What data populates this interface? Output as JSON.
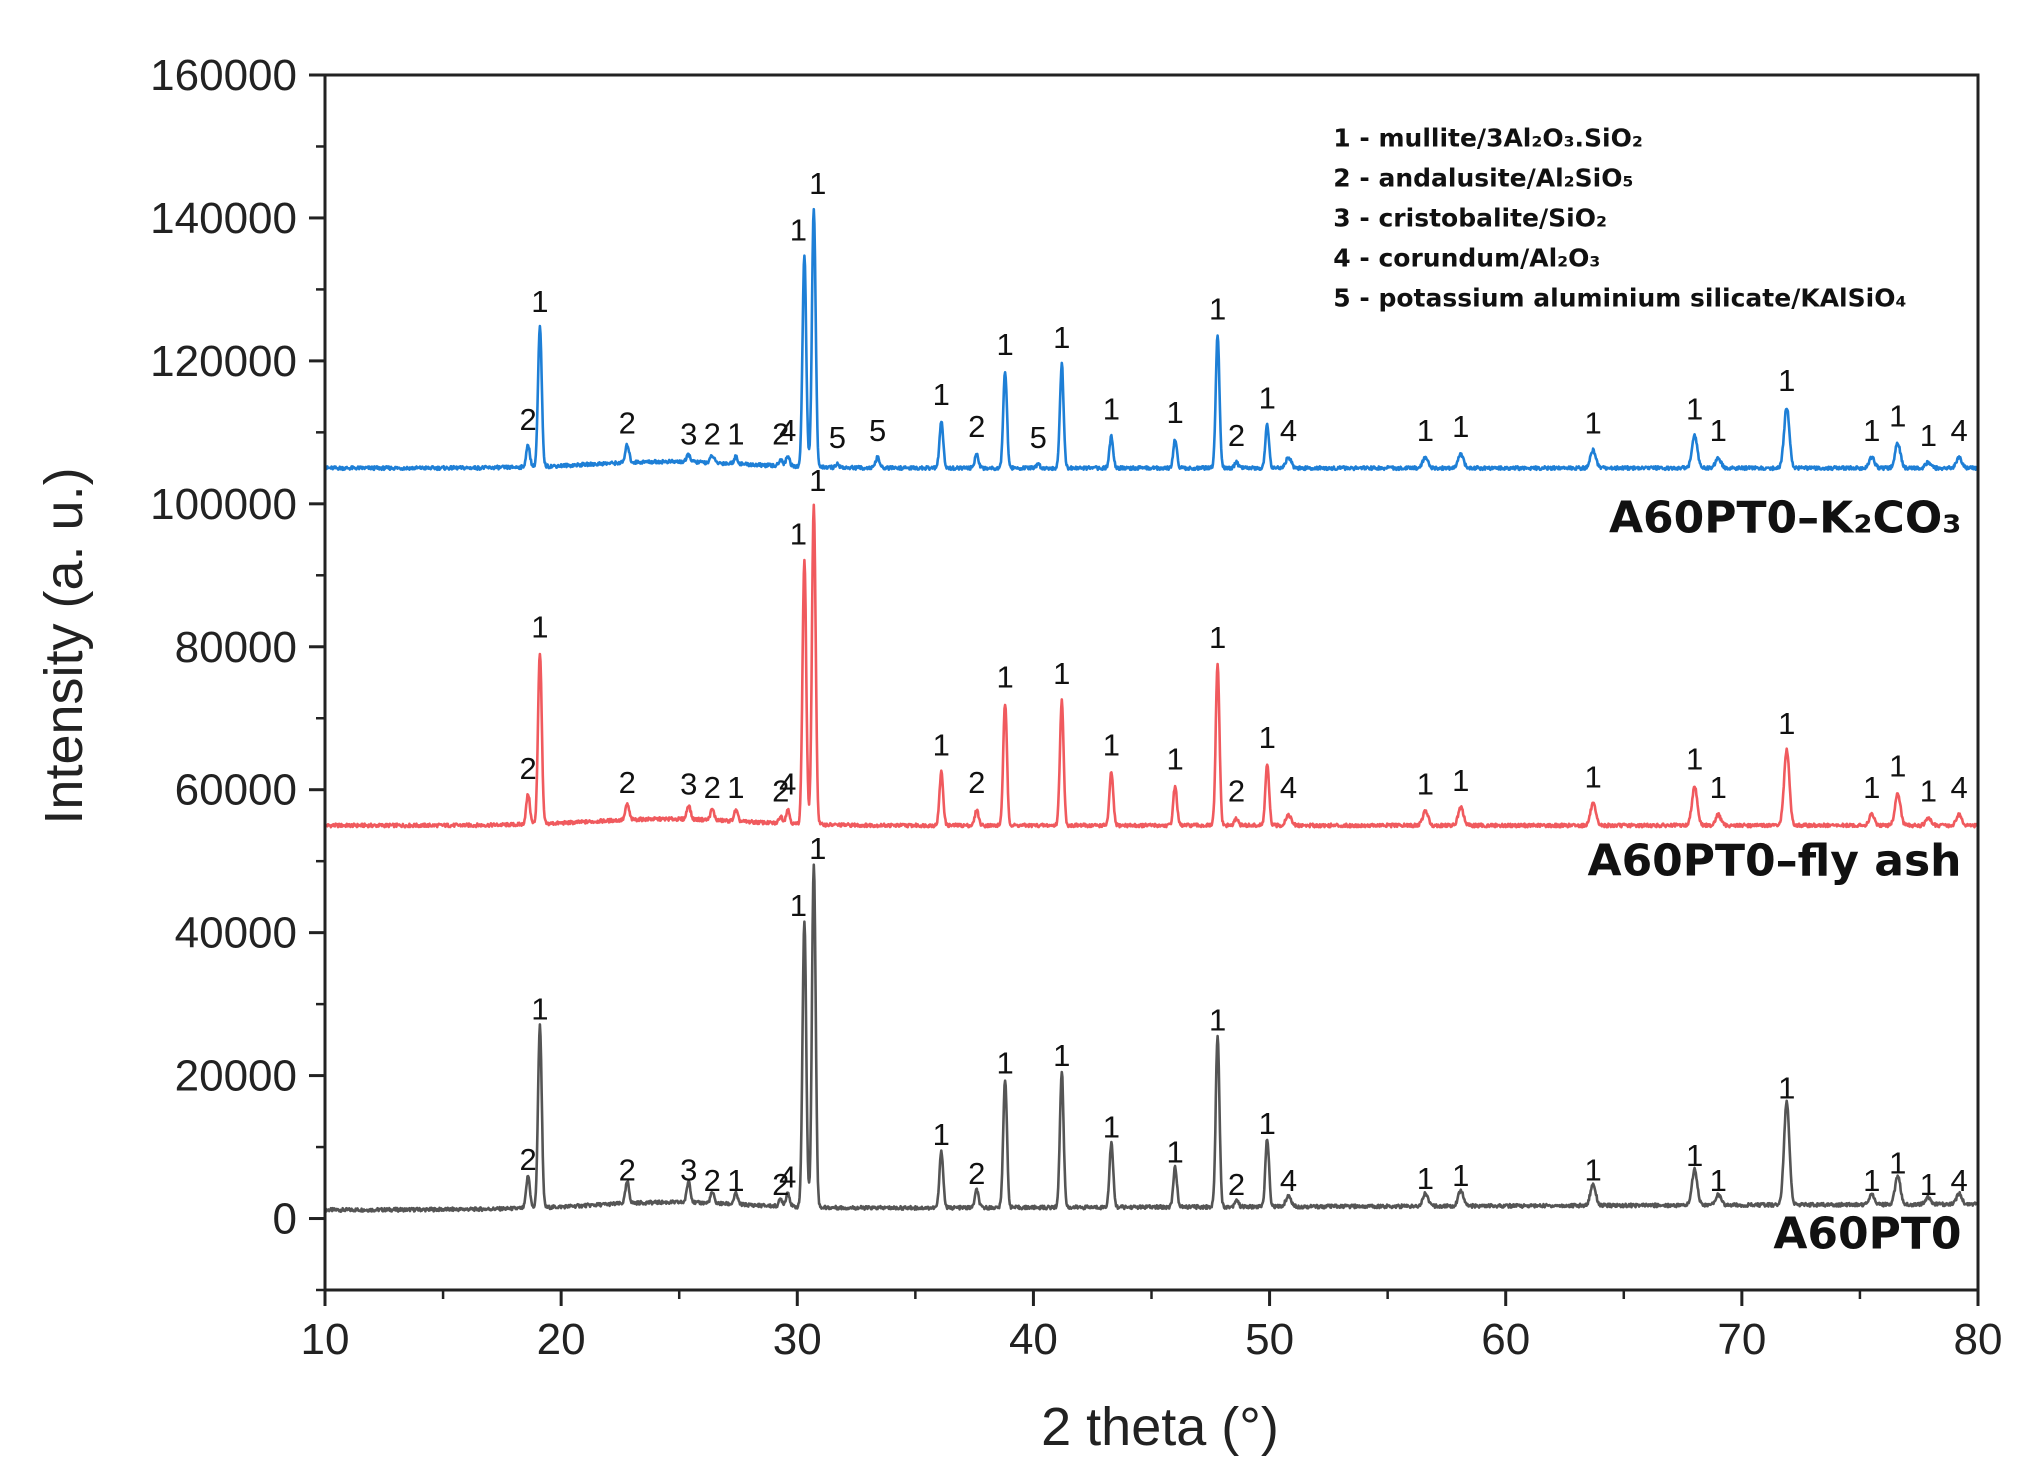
{
  "chart_data": {
    "type": "line",
    "title": "",
    "xlabel": "2 theta (°)",
    "ylabel": "Intensity (a. u.)",
    "xlim": [
      10,
      80
    ],
    "ylim": [
      -10000,
      160000
    ],
    "x_ticks": [
      10,
      20,
      30,
      40,
      50,
      60,
      70,
      80
    ],
    "y_ticks": [
      0,
      20000,
      40000,
      60000,
      80000,
      100000,
      120000,
      140000,
      160000
    ],
    "grid": false,
    "legend_position": "top-right",
    "legend": [
      {
        "key": "1",
        "text": "1 - mullite/3Al₂O₃.SiO₂"
      },
      {
        "key": "2",
        "text": "2 - andalusite/Al₂SiO₅"
      },
      {
        "key": "3",
        "text": "3 - cristobalite/SiO₂"
      },
      {
        "key": "4",
        "text": "4 - corundum/Al₂O₃"
      },
      {
        "key": "5",
        "text": "5 - potassium aluminium silicate/KAlSiO₄"
      }
    ],
    "series": [
      {
        "name": "A60PT0",
        "label_text": "A60PT0",
        "color": "#555555",
        "baseline_start": 1200,
        "baseline_end": 2000,
        "offset": 0,
        "peaks": [
          {
            "x": 18.6,
            "height": 4500,
            "label": "2"
          },
          {
            "x": 19.1,
            "height": 25500,
            "label": "1"
          },
          {
            "x": 22.8,
            "height": 3000,
            "label": "2"
          },
          {
            "x": 25.4,
            "height": 3000,
            "label": "3"
          },
          {
            "x": 26.4,
            "height": 1500,
            "label": "2"
          },
          {
            "x": 27.4,
            "height": 1500,
            "label": "1"
          },
          {
            "x": 29.3,
            "height": 1000,
            "label": "2"
          },
          {
            "x": 29.6,
            "height": 2000,
            "label": "4"
          },
          {
            "x": 30.3,
            "height": 40000,
            "label": "1"
          },
          {
            "x": 30.7,
            "height": 48000,
            "label": "1"
          },
          {
            "x": 36.1,
            "height": 8000,
            "label": "1"
          },
          {
            "x": 37.6,
            "height": 2500,
            "label": "2"
          },
          {
            "x": 38.8,
            "height": 18000,
            "label": "1"
          },
          {
            "x": 41.2,
            "height": 19000,
            "label": "1"
          },
          {
            "x": 43.3,
            "height": 9000,
            "label": "1"
          },
          {
            "x": 46.0,
            "height": 5500,
            "label": "1"
          },
          {
            "x": 47.8,
            "height": 24000,
            "label": "1"
          },
          {
            "x": 48.6,
            "height": 1000,
            "label": "2"
          },
          {
            "x": 49.9,
            "height": 9500,
            "label": "1"
          },
          {
            "x": 50.8,
            "height": 1500,
            "label": "4"
          },
          {
            "x": 56.6,
            "height": 1800,
            "label": "1"
          },
          {
            "x": 58.1,
            "height": 2200,
            "label": "1"
          },
          {
            "x": 63.7,
            "height": 3000,
            "label": "1"
          },
          {
            "x": 68.0,
            "height": 5000,
            "label": "1"
          },
          {
            "x": 69.0,
            "height": 1500,
            "label": "1"
          },
          {
            "x": 71.9,
            "height": 14500,
            "label": "1"
          },
          {
            "x": 75.5,
            "height": 1500,
            "label": "1"
          },
          {
            "x": 76.6,
            "height": 4000,
            "label": "1"
          },
          {
            "x": 77.9,
            "height": 1000,
            "label": "1"
          },
          {
            "x": 79.2,
            "height": 1500,
            "label": "4"
          }
        ]
      },
      {
        "name": "A60PT0–fly ash",
        "label_text": "A60PT0–fly ash",
        "color": "#f05a5e",
        "baseline_start": 55000,
        "baseline_end": 55000,
        "offset": 55000,
        "peaks": [
          {
            "x": 18.6,
            "height": 4200,
            "label": "2"
          },
          {
            "x": 19.1,
            "height": 24000,
            "label": "1"
          },
          {
            "x": 22.8,
            "height": 2200,
            "label": "2"
          },
          {
            "x": 25.4,
            "height": 2000,
            "label": "3"
          },
          {
            "x": 26.4,
            "height": 1500,
            "label": "2"
          },
          {
            "x": 27.4,
            "height": 1500,
            "label": "1"
          },
          {
            "x": 29.3,
            "height": 1000,
            "label": "2"
          },
          {
            "x": 29.6,
            "height": 2000,
            "label": "4"
          },
          {
            "x": 30.3,
            "height": 37000,
            "label": "1"
          },
          {
            "x": 30.7,
            "height": 44500,
            "label": "1"
          },
          {
            "x": 36.1,
            "height": 7500,
            "label": "1"
          },
          {
            "x": 37.6,
            "height": 2200,
            "label": "2"
          },
          {
            "x": 38.8,
            "height": 17000,
            "label": "1"
          },
          {
            "x": 41.2,
            "height": 17500,
            "label": "1"
          },
          {
            "x": 43.3,
            "height": 7500,
            "label": "1"
          },
          {
            "x": 46.0,
            "height": 5500,
            "label": "1"
          },
          {
            "x": 47.8,
            "height": 22500,
            "label": "1"
          },
          {
            "x": 48.6,
            "height": 1000,
            "label": "2"
          },
          {
            "x": 49.9,
            "height": 8500,
            "label": "1"
          },
          {
            "x": 50.8,
            "height": 1500,
            "label": "4"
          },
          {
            "x": 56.6,
            "height": 2000,
            "label": "1"
          },
          {
            "x": 58.1,
            "height": 2500,
            "label": "1"
          },
          {
            "x": 63.7,
            "height": 3000,
            "label": "1"
          },
          {
            "x": 68.0,
            "height": 5500,
            "label": "1"
          },
          {
            "x": 69.0,
            "height": 1500,
            "label": "1"
          },
          {
            "x": 71.9,
            "height": 10500,
            "label": "1"
          },
          {
            "x": 75.5,
            "height": 1500,
            "label": "1"
          },
          {
            "x": 76.6,
            "height": 4500,
            "label": "1"
          },
          {
            "x": 77.9,
            "height": 1000,
            "label": "1"
          },
          {
            "x": 79.2,
            "height": 1500,
            "label": "4"
          }
        ]
      },
      {
        "name": "A60PT0–K2CO3",
        "label_text": "A60PT0–K₂CO₃",
        "color": "#1e7fd6",
        "baseline_start": 105000,
        "baseline_end": 105000,
        "offset": 105000,
        "peaks": [
          {
            "x": 18.6,
            "height": 3000,
            "label": "2"
          },
          {
            "x": 19.1,
            "height": 19500,
            "label": "1"
          },
          {
            "x": 22.8,
            "height": 2500,
            "label": "2"
          },
          {
            "x": 25.4,
            "height": 1000,
            "label": "3"
          },
          {
            "x": 26.4,
            "height": 1000,
            "label": "2"
          },
          {
            "x": 27.4,
            "height": 1000,
            "label": "1"
          },
          {
            "x": 29.3,
            "height": 1000,
            "label": "2"
          },
          {
            "x": 29.6,
            "height": 1500,
            "label": "4"
          },
          {
            "x": 30.3,
            "height": 29500,
            "label": "1"
          },
          {
            "x": 30.7,
            "height": 36000,
            "label": "1"
          },
          {
            "x": 31.7,
            "height": 500,
            "label": "5"
          },
          {
            "x": 33.4,
            "height": 1500,
            "label": "5"
          },
          {
            "x": 36.1,
            "height": 6500,
            "label": "1"
          },
          {
            "x": 37.6,
            "height": 2000,
            "label": "2"
          },
          {
            "x": 38.8,
            "height": 13500,
            "label": "1"
          },
          {
            "x": 40.2,
            "height": 500,
            "label": "5"
          },
          {
            "x": 41.2,
            "height": 14500,
            "label": "1"
          },
          {
            "x": 43.3,
            "height": 4500,
            "label": "1"
          },
          {
            "x": 46.0,
            "height": 4000,
            "label": "1"
          },
          {
            "x": 47.8,
            "height": 18500,
            "label": "1"
          },
          {
            "x": 48.6,
            "height": 800,
            "label": "2"
          },
          {
            "x": 49.9,
            "height": 6000,
            "label": "1"
          },
          {
            "x": 50.8,
            "height": 1500,
            "label": "4"
          },
          {
            "x": 56.6,
            "height": 1500,
            "label": "1"
          },
          {
            "x": 58.1,
            "height": 2000,
            "label": "1"
          },
          {
            "x": 63.7,
            "height": 2500,
            "label": "1"
          },
          {
            "x": 68.0,
            "height": 4500,
            "label": "1"
          },
          {
            "x": 69.0,
            "height": 1500,
            "label": "1"
          },
          {
            "x": 71.9,
            "height": 8500,
            "label": "1"
          },
          {
            "x": 75.5,
            "height": 1500,
            "label": "1"
          },
          {
            "x": 76.6,
            "height": 3500,
            "label": "1"
          },
          {
            "x": 77.9,
            "height": 800,
            "label": "1"
          },
          {
            "x": 79.2,
            "height": 1500,
            "label": "4"
          }
        ]
      }
    ]
  }
}
